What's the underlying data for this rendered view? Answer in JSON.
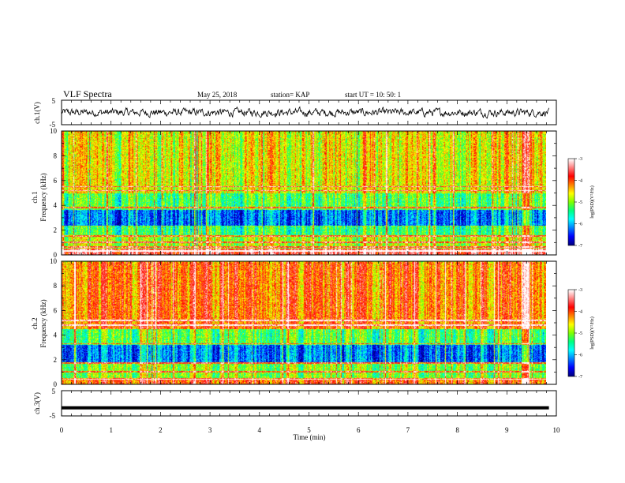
{
  "header": {
    "title": "VLF Spectra",
    "date": "May 25, 2018",
    "station": "station= KAP",
    "start": "start  UT  =   10: 50: 1"
  },
  "chart_data": [
    {
      "type": "line",
      "panel": "ch1-waveform",
      "ylabel": "ch.1(V)",
      "ylim": [
        -5,
        5
      ],
      "yticks": [
        "5",
        "-5"
      ],
      "x_range_min": [
        0,
        9.85
      ],
      "description_values": {
        "typical_amplitude_v": 1.5,
        "baseline_v": 0
      }
    },
    {
      "type": "heatmap",
      "panel": "ch1-spectrogram",
      "ylabel": "ch.1 Frequency (kHz)",
      "ylim_khz": [
        0,
        10
      ],
      "yticks": [
        "0",
        "2",
        "4",
        "6",
        "8",
        "10"
      ],
      "x_range_min": [
        0,
        9.85
      ],
      "colorbar": {
        "label": "log(PSD)(V²/Hz)",
        "range": [
          -7,
          -3
        ],
        "ticks": [
          "-3",
          "-4",
          "-5",
          "-6",
          "-7"
        ]
      },
      "bands": [
        {
          "f_khz": [
            0,
            0.5
          ],
          "level": -3.5
        },
        {
          "f_khz": [
            0.5,
            1.5
          ],
          "level": -4.8
        },
        {
          "f_khz": [
            1.5,
            2.3
          ],
          "level": -5.3
        },
        {
          "f_khz": [
            2.3,
            3.6
          ],
          "level": -6.2
        },
        {
          "f_khz": [
            3.6,
            5.0
          ],
          "level": -5.2
        },
        {
          "f_khz": [
            5.0,
            10
          ],
          "level": -4.6
        }
      ],
      "tone_lines_khz": [
        0.3,
        0.6,
        1.0,
        1.5,
        2.3,
        3.8,
        5.2,
        5.5
      ],
      "bright_column_min": [
        9.35,
        9.5
      ]
    },
    {
      "type": "heatmap",
      "panel": "ch2-spectrogram",
      "ylabel": "ch.2 Frequency (kHz)",
      "ylim_khz": [
        0,
        10
      ],
      "yticks": [
        "0",
        "2",
        "4",
        "6",
        "8",
        "10"
      ],
      "x_range_min": [
        0,
        9.85
      ],
      "colorbar": {
        "label": "log(PSD)(V²/Hz)",
        "range": [
          -7,
          -3
        ],
        "ticks": [
          "-3",
          "-4",
          "-5",
          "-6",
          "-7"
        ]
      },
      "bands": [
        {
          "f_khz": [
            0,
            0.5
          ],
          "level": -4.0
        },
        {
          "f_khz": [
            0.5,
            1.8
          ],
          "level": -5.0
        },
        {
          "f_khz": [
            1.8,
            3.2
          ],
          "level": -6.2
        },
        {
          "f_khz": [
            3.2,
            4.5
          ],
          "level": -5.2
        },
        {
          "f_khz": [
            4.5,
            10
          ],
          "level": -4.1
        }
      ],
      "tone_lines_khz": [
        0.4,
        1.0,
        1.7,
        3.3,
        4.8,
        5.2
      ],
      "bright_column_min": [
        9.35,
        9.5
      ]
    },
    {
      "type": "line",
      "panel": "ch3-waveform",
      "ylabel": "ch.3(V)",
      "ylim": [
        -5,
        5
      ],
      "yticks": [
        "5",
        "-5"
      ],
      "x_range_min": [
        0,
        9.85
      ],
      "description_values": {
        "constant_v": -1.8
      }
    }
  ],
  "x_axis": {
    "label": "Time  (min)",
    "range": [
      0,
      10
    ],
    "ticks": [
      "0",
      "1",
      "2",
      "3",
      "4",
      "5",
      "6",
      "7",
      "8",
      "9",
      "10"
    ]
  },
  "colors": {
    "scale": [
      "#000080",
      "#0000ff",
      "#0080ff",
      "#00ffff",
      "#00ff80",
      "#80ff00",
      "#ffff00",
      "#ff8000",
      "#ff0000",
      "#ff8080",
      "#ffffff"
    ]
  }
}
